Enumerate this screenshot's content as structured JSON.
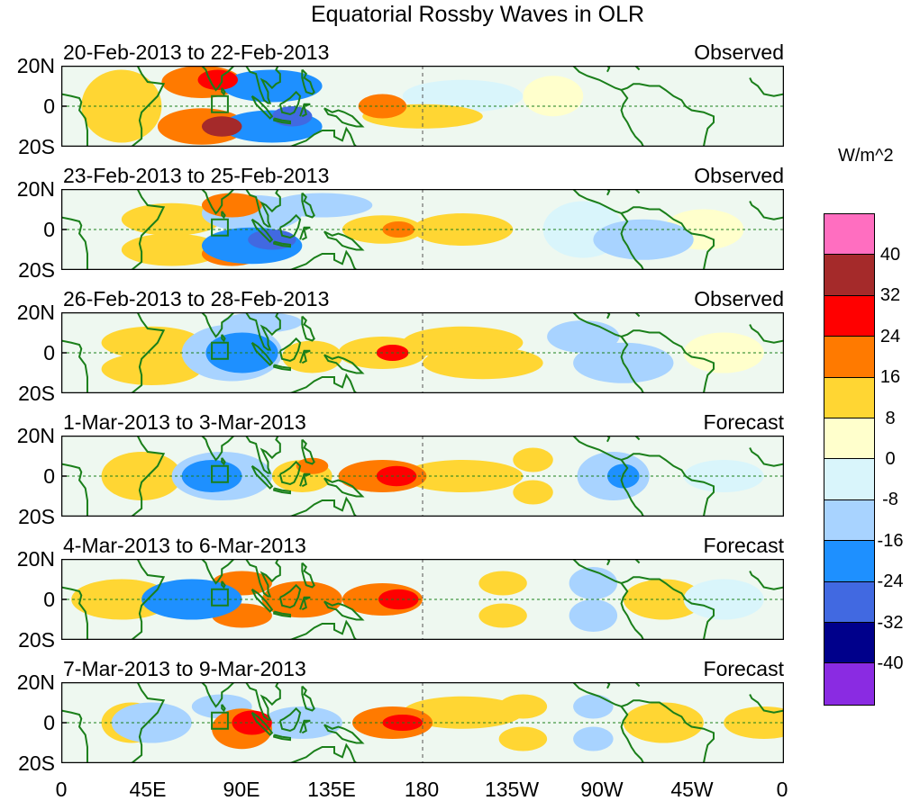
{
  "title": "Equatorial Rossby Waves in OLR",
  "panels": [
    {
      "dates": "20-Feb-2013 to 22-Feb-2013",
      "type": "Observed"
    },
    {
      "dates": "23-Feb-2013 to 25-Feb-2013",
      "type": "Observed"
    },
    {
      "dates": "26-Feb-2013 to 28-Feb-2013",
      "type": "Observed"
    },
    {
      "dates": "1-Mar-2013 to 3-Mar-2013",
      "type": "Forecast"
    },
    {
      "dates": "4-Mar-2013 to 6-Mar-2013",
      "type": "Forecast"
    },
    {
      "dates": "7-Mar-2013 to 9-Mar-2013",
      "type": "Forecast"
    }
  ],
  "y_ticks": [
    "20N",
    "0",
    "20S"
  ],
  "x_ticks": [
    "0",
    "45E",
    "90E",
    "135E",
    "180",
    "135W",
    "90W",
    "45W",
    "0"
  ],
  "colorbar": {
    "units": "W/m^2",
    "labels": [
      "40",
      "32",
      "24",
      "16",
      "8",
      "0",
      "-8",
      "-16",
      "-24",
      "-32",
      "-40"
    ],
    "colors": [
      "#ff6ec0",
      "#a52a2a",
      "#ff0000",
      "#ff7a00",
      "#ffd633",
      "#ffffcc",
      "#d9f5fb",
      "#a8d3ff",
      "#1e90ff",
      "#4169e1",
      "#00008b",
      "#8a2be2"
    ]
  },
  "line_colors": {
    "coast": "#1a7f1a",
    "frame": "#000000"
  }
}
